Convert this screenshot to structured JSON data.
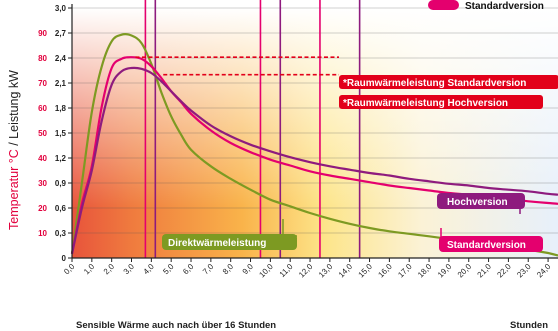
{
  "colors": {
    "standard": "#e4006e",
    "hoch": "#8e1b7e",
    "direkt": "#7d9a22",
    "label_red": "#e2001a",
    "temp_red": "#e2003d"
  },
  "legend": {
    "label": "Standardversion"
  },
  "y_axis_label": {
    "part1": "Temperatur °C",
    "sep": " / ",
    "part2": "Leistung kW"
  },
  "x_axis_label": "Sensible Wärme auch nach über 16 Stunden",
  "x_unit": "Stunden",
  "chart_data": {
    "type": "line",
    "x_ticks": [
      "0,0",
      "1,0",
      "2,0",
      "3,0",
      "4,0",
      "5,0",
      "6,0",
      "7,0",
      "8,0",
      "9,0",
      "10,0",
      "11,0",
      "12,0",
      "13,0",
      "14,0",
      "15,0",
      "16,0",
      "17,0",
      "18,0",
      "19,0",
      "20,0",
      "21,0",
      "22,0",
      "23,0",
      "24,0"
    ],
    "xlim": [
      0,
      24.5
    ],
    "ylim": [
      0,
      3.0
    ],
    "y_ticks_kw": [
      "0",
      "0,3",
      "0,6",
      "0,9",
      "1,2",
      "1,5",
      "1,8",
      "2,1",
      "2,4",
      "2,7",
      "3,0"
    ],
    "y_ticks_temp": [
      "",
      "10",
      "20",
      "30",
      "40",
      "50",
      "60",
      "70",
      "80",
      "90"
    ],
    "series": [
      {
        "name": "Direktwärmeleistung",
        "key": "direkt",
        "x": [
          0,
          0.5,
          1,
          1.5,
          2,
          2.5,
          3,
          3.5,
          4,
          4.5,
          5,
          5.5,
          6,
          7,
          8,
          9,
          10,
          11,
          12,
          13,
          14,
          15,
          16,
          17,
          18,
          19,
          20,
          21,
          22,
          23,
          24,
          24.5
        ],
        "y": [
          0.05,
          0.9,
          1.75,
          2.3,
          2.6,
          2.68,
          2.67,
          2.58,
          2.33,
          1.99,
          1.7,
          1.48,
          1.3,
          1.1,
          0.95,
          0.82,
          0.7,
          0.62,
          0.54,
          0.47,
          0.41,
          0.36,
          0.32,
          0.29,
          0.26,
          0.23,
          0.2,
          0.18,
          0.14,
          0.1,
          0.06,
          0.03
        ]
      },
      {
        "name": "Standardversion",
        "key": "standard",
        "x": [
          0,
          0.5,
          1,
          1.5,
          2,
          2.5,
          3,
          3.5,
          4,
          4.5,
          5,
          5.5,
          6,
          7,
          8,
          9,
          10,
          11,
          12,
          13,
          14,
          15,
          16,
          17,
          18,
          19,
          20,
          21,
          22,
          23,
          24,
          24.5
        ],
        "y": [
          0.05,
          0.65,
          1.1,
          1.82,
          2.28,
          2.39,
          2.41,
          2.39,
          2.3,
          2.16,
          2.0,
          1.87,
          1.73,
          1.53,
          1.38,
          1.27,
          1.18,
          1.11,
          1.04,
          0.99,
          0.95,
          0.91,
          0.87,
          0.84,
          0.81,
          0.78,
          0.76,
          0.73,
          0.71,
          0.68,
          0.66,
          0.65
        ]
      },
      {
        "name": "Hochversion",
        "key": "hoch",
        "x": [
          0,
          0.5,
          1,
          1.5,
          2,
          2.5,
          3,
          3.5,
          4,
          4.5,
          5,
          5.5,
          6,
          7,
          8,
          9,
          10,
          11,
          12,
          13,
          14,
          15,
          16,
          17,
          18,
          19,
          20,
          21,
          22,
          23,
          24,
          24.5
        ],
        "y": [
          0.05,
          0.6,
          1.05,
          1.65,
          2.08,
          2.24,
          2.28,
          2.27,
          2.22,
          2.12,
          2.0,
          1.88,
          1.77,
          1.59,
          1.46,
          1.36,
          1.28,
          1.21,
          1.15,
          1.1,
          1.06,
          1.02,
          0.99,
          0.95,
          0.92,
          0.89,
          0.87,
          0.84,
          0.82,
          0.8,
          0.77,
          0.76
        ]
      }
    ],
    "vertical_lines": [
      {
        "x": 3.7,
        "key": "standard"
      },
      {
        "x": 4.2,
        "key": "hoch"
      },
      {
        "x": 9.5,
        "key": "standard"
      },
      {
        "x": 10.5,
        "key": "hoch"
      },
      {
        "x": 12.5,
        "key": "standard"
      },
      {
        "x": 14.5,
        "key": "hoch"
      }
    ],
    "dashed_lines": [
      {
        "from_x": 3.2,
        "y": 2.41,
        "key": "label_red"
      },
      {
        "from_x": 4.6,
        "y": 2.2,
        "key": "label_red"
      }
    ],
    "annotations": [
      {
        "key": "standard_leistung",
        "text": "*Raumwärmeleistung Standardversion"
      },
      {
        "key": "hoch_leistung",
        "text": "*Raumwärmeleistung Hochversion"
      },
      {
        "key": "hoch_label",
        "text": "Hochversion"
      },
      {
        "key": "standard_label",
        "text": "Standardversion"
      },
      {
        "key": "direkt_label",
        "text": "Direktwärmeleistung"
      }
    ]
  }
}
